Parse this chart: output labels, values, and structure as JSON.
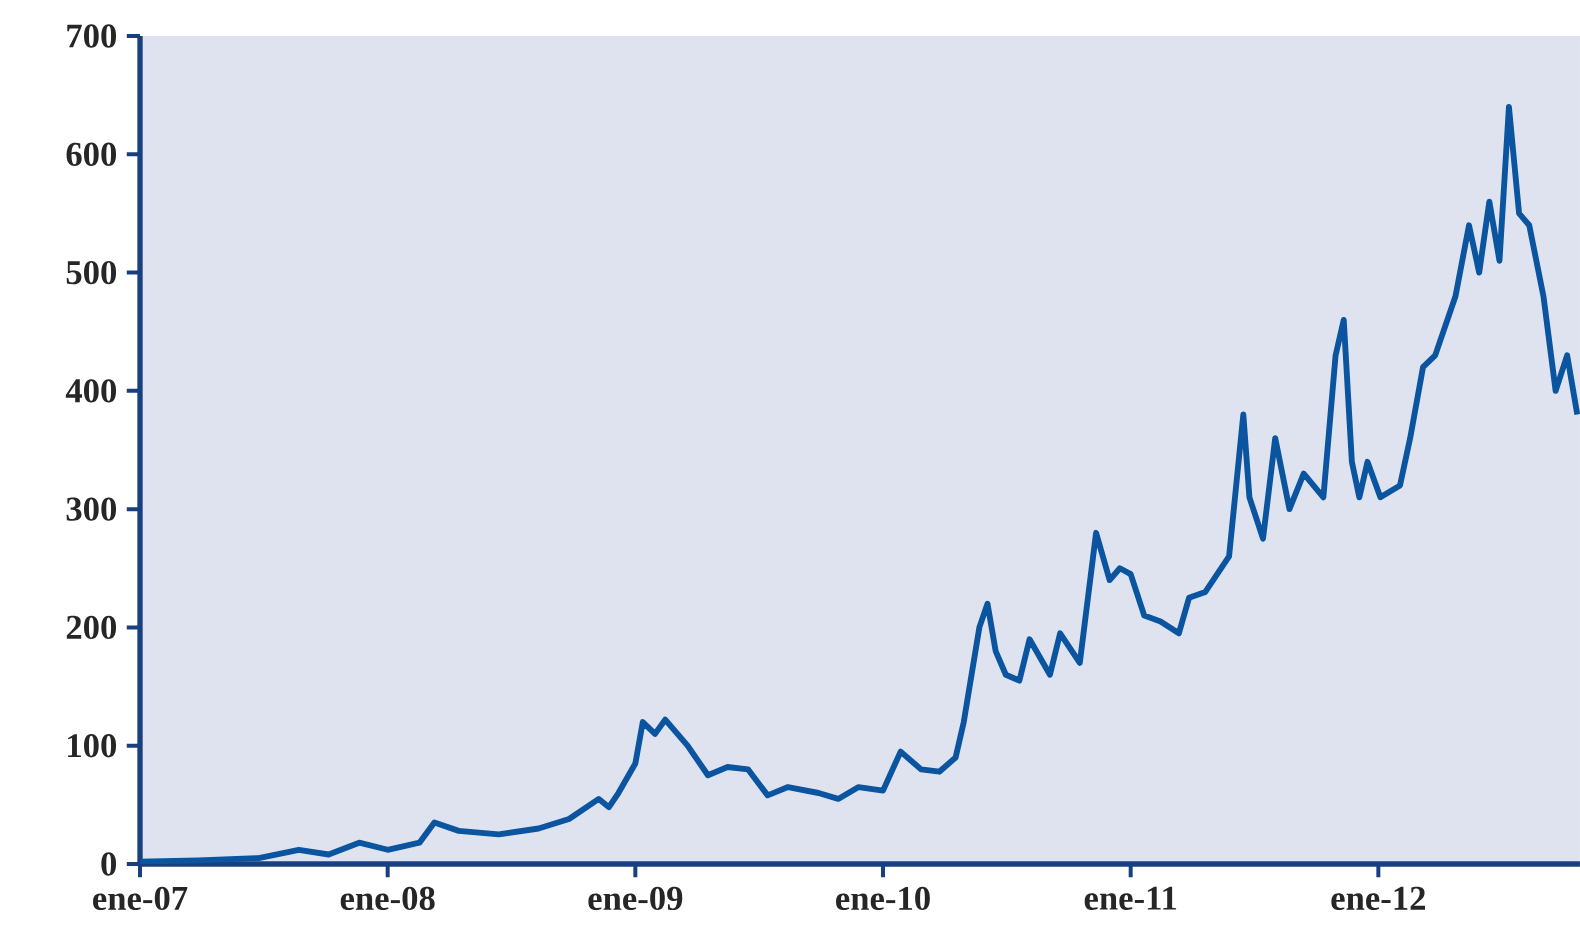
{
  "chart_data": {
    "type": "line",
    "color": "#0a54a0",
    "line_style": "solid",
    "marker": "none",
    "grid": false,
    "x": [
      "2007-01-01",
      "2007-03-28",
      "2007-06-25",
      "2007-08-23",
      "2007-10-06",
      "2007-11-20",
      "2008-01-01",
      "2008-02-17",
      "2008-03-10",
      "2008-04-15",
      "2008-06-13",
      "2008-08-11",
      "2008-09-25",
      "2008-11-08",
      "2008-11-23",
      "2008-12-07",
      "2009-01-01",
      "2009-01-12",
      "2009-01-30",
      "2009-02-14",
      "2009-03-19",
      "2009-04-18",
      "2009-05-17",
      "2009-06-16",
      "2009-07-15",
      "2009-08-14",
      "2009-09-28",
      "2009-10-27",
      "2009-11-26",
      "2010-01-01",
      "2010-01-27",
      "2010-02-26",
      "2010-03-25",
      "2010-04-18",
      "2010-04-30",
      "2010-05-23",
      "2010-06-04",
      "2010-06-16",
      "2010-07-01",
      "2010-07-21",
      "2010-08-05",
      "2010-09-04",
      "2010-09-19",
      "2010-10-18",
      "2010-11-11",
      "2010-12-01",
      "2010-12-16",
      "2011-01-01",
      "2011-01-21",
      "2011-02-14",
      "2011-03-13",
      "2011-03-28",
      "2011-04-21",
      "2011-05-26",
      "2011-06-16",
      "2011-06-25",
      "2011-07-15",
      "2011-08-02",
      "2011-08-23",
      "2011-09-13",
      "2011-10-12",
      "2011-10-30",
      "2011-11-11",
      "2011-11-23",
      "2011-12-04",
      "2011-12-16",
      "2012-01-04",
      "2012-02-02",
      "2012-02-17",
      "2012-03-07",
      "2012-03-25",
      "2012-04-24",
      "2012-05-14",
      "2012-05-29",
      "2012-06-13",
      "2012-06-28",
      "2012-07-12",
      "2012-07-27",
      "2012-08-11",
      "2012-09-01",
      "2012-09-19",
      "2012-10-06",
      "2012-10-21"
    ],
    "values": [
      2,
      3,
      5,
      12,
      8,
      18,
      12,
      18,
      35,
      28,
      25,
      30,
      38,
      55,
      48,
      60,
      85,
      120,
      110,
      122,
      100,
      75,
      82,
      80,
      58,
      65,
      60,
      55,
      65,
      62,
      95,
      80,
      78,
      90,
      120,
      200,
      220,
      180,
      160,
      155,
      190,
      160,
      195,
      170,
      280,
      240,
      250,
      245,
      210,
      205,
      195,
      225,
      230,
      260,
      380,
      310,
      275,
      360,
      300,
      330,
      310,
      430,
      460,
      340,
      310,
      340,
      310,
      320,
      360,
      420,
      430,
      480,
      540,
      500,
      560,
      510,
      640,
      550,
      540,
      480,
      400,
      430,
      380
    ],
    "xlim": [
      "2007-01-01",
      "2012-10-25"
    ],
    "xticks": [
      {
        "value": "2007-01-01",
        "label": "ene-07"
      },
      {
        "value": "2008-01-01",
        "label": "ene-08"
      },
      {
        "value": "2009-01-01",
        "label": "ene-09"
      },
      {
        "value": "2010-01-01",
        "label": "ene-10"
      },
      {
        "value": "2011-01-01",
        "label": "ene-11"
      },
      {
        "value": "2012-01-01",
        "label": "ene-12"
      }
    ],
    "ylim": [
      0,
      700
    ],
    "yticks": [
      0,
      100,
      200,
      300,
      400,
      500,
      600,
      700
    ]
  }
}
